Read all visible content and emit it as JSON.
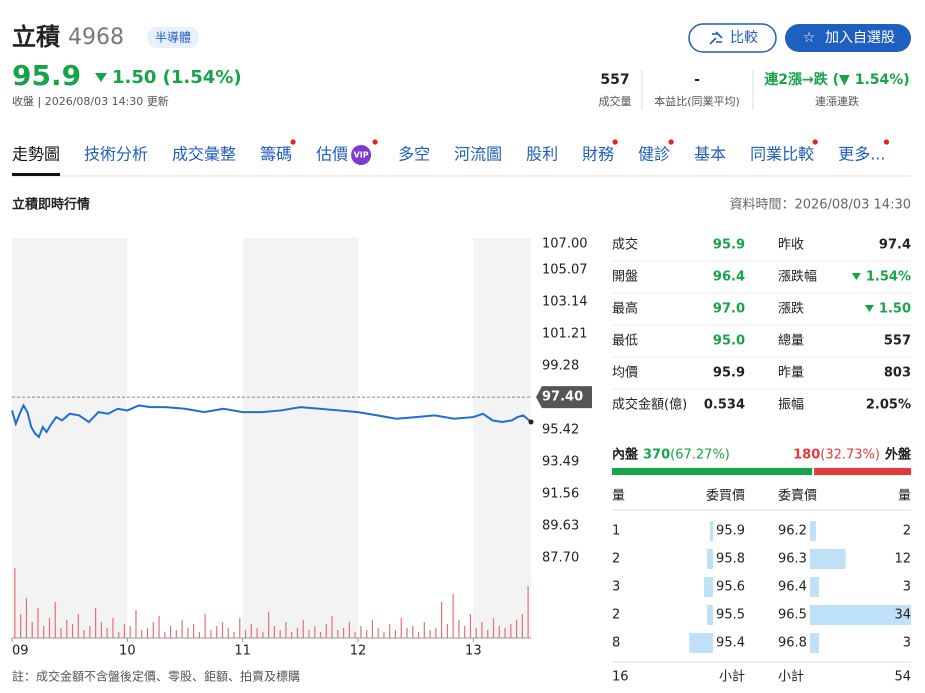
{
  "header": {
    "name": "立積",
    "code": "4968",
    "tag": "半導體",
    "price": "95.9",
    "change": "1.50 (1.54%)",
    "direction": "down",
    "updated": "收盤 | 2026/08/03 14:30 更新",
    "buttons": [
      "比較",
      "加入自選股"
    ]
  },
  "stats": [
    {
      "value": "557",
      "label": "成交量"
    },
    {
      "value": "-",
      "label": "本益比(同業平均)"
    },
    {
      "value": "連2漲→跌 (▼ 1.54%)",
      "label": "連漲連跌",
      "color": "#16a34a"
    }
  ],
  "tabs": [
    {
      "label": "走勢圖",
      "active": true
    },
    {
      "label": "技術分析"
    },
    {
      "label": "成交彙整"
    },
    {
      "label": "籌碼",
      "dot": true
    },
    {
      "label": "估價",
      "badge": "VIP",
      "dot": true
    },
    {
      "label": "多空"
    },
    {
      "label": "河流圖"
    },
    {
      "label": "股利"
    },
    {
      "label": "財務",
      "dot": true
    },
    {
      "label": "健診",
      "dot": true
    },
    {
      "label": "基本"
    },
    {
      "label": "同業比較",
      "dot": true
    },
    {
      "label": "更多...",
      "dot": true
    }
  ],
  "section": {
    "title": "立積即時行情",
    "time": "資料時間：2026/08/03 14:30"
  },
  "chart_data": {
    "type": "line",
    "grid": false,
    "x": [
      0,
      2,
      4,
      6,
      8,
      10,
      12,
      14,
      16,
      18,
      20,
      23,
      26,
      30,
      35,
      40,
      45,
      50,
      55,
      60,
      66,
      72,
      80,
      90,
      100,
      110,
      120,
      130,
      140,
      150,
      160,
      170,
      180,
      190,
      200,
      210,
      220,
      230,
      240,
      245,
      250,
      255,
      260,
      263,
      266,
      270
    ],
    "series": [
      {
        "color": "#1f6fd1",
        "values": [
          96.6,
          95.8,
          96.4,
          96.9,
          96.5,
          95.6,
          95.2,
          95.0,
          95.6,
          95.3,
          95.7,
          96.2,
          96.0,
          96.4,
          96.3,
          95.9,
          96.5,
          96.4,
          96.7,
          96.6,
          96.9,
          96.8,
          96.8,
          96.7,
          96.5,
          96.7,
          96.5,
          96.5,
          96.6,
          96.8,
          96.7,
          96.6,
          96.5,
          96.3,
          96.1,
          96.2,
          96.3,
          96.1,
          96.2,
          96.4,
          96.0,
          95.9,
          96.0,
          96.2,
          96.3,
          95.9
        ]
      }
    ],
    "xlim": [
      0,
      270
    ],
    "xticks": [
      {
        "value": 0,
        "label": "09"
      },
      {
        "value": 60,
        "label": "10"
      },
      {
        "value": 120,
        "label": "11"
      },
      {
        "value": 180,
        "label": "12"
      },
      {
        "value": 240,
        "label": "13"
      }
    ],
    "ylim": [
      87.7,
      107
    ],
    "yticks": [
      {
        "value": 107,
        "label": "107.00"
      },
      {
        "value": 105.07,
        "label": "105.07"
      },
      {
        "value": 103.14,
        "label": "103.14"
      },
      {
        "value": 101.21,
        "label": "101.21"
      },
      {
        "value": 99.28,
        "label": "99.28"
      },
      {
        "value": 95.42,
        "label": "95.42"
      },
      {
        "value": 93.49,
        "label": "93.49"
      },
      {
        "value": 91.56,
        "label": "91.56"
      },
      {
        "value": 89.63,
        "label": "89.63"
      },
      {
        "value": 87.7,
        "label": "87.70"
      }
    ],
    "reference": {
      "value": 97.4,
      "label": "97.40"
    },
    "volume": {
      "color": "#e57373",
      "vlim": [
        0,
        40
      ],
      "values": [
        35,
        12,
        20,
        8,
        15,
        6,
        10,
        18,
        5,
        9,
        7,
        12,
        4,
        6,
        15,
        8,
        5,
        10,
        3,
        7,
        6,
        14,
        4,
        5,
        8,
        11,
        3,
        6,
        4,
        9,
        5,
        7,
        3,
        12,
        4,
        6,
        8,
        5,
        3,
        10,
        4,
        7,
        5,
        3,
        13,
        6,
        4,
        8,
        3,
        5,
        9,
        4,
        6,
        3,
        7,
        11,
        4,
        5,
        8,
        3,
        6,
        4,
        9,
        5,
        3,
        7,
        4,
        10,
        5,
        6,
        3,
        8,
        4,
        5,
        18,
        7,
        22,
        9,
        6,
        12,
        5,
        8,
        4,
        10,
        6,
        5,
        7,
        9,
        12,
        26
      ]
    }
  },
  "quote": {
    "rows": [
      [
        {
          "label": "成交",
          "value": "95.9",
          "color": "#16a34a"
        },
        {
          "label": "昨收",
          "value": "97.4"
        }
      ],
      [
        {
          "label": "開盤",
          "value": "96.4",
          "color": "#16a34a"
        },
        {
          "label": "漲跌幅",
          "value": "1.54%",
          "color": "#16a34a",
          "arrow": "down"
        }
      ],
      [
        {
          "label": "最高",
          "value": "97.0",
          "color": "#16a34a"
        },
        {
          "label": "漲跌",
          "value": "1.50",
          "color": "#16a34a",
          "arrow": "down"
        }
      ],
      [
        {
          "label": "最低",
          "value": "95.0",
          "color": "#16a34a"
        },
        {
          "label": "總量",
          "value": "557"
        }
      ],
      [
        {
          "label": "均價",
          "value": "95.9"
        },
        {
          "label": "昨量",
          "value": "803"
        }
      ],
      [
        {
          "label": "成交金額(億)",
          "value": "0.534"
        },
        {
          "label": "振幅",
          "value": "2.05%"
        }
      ]
    ]
  },
  "flow": {
    "inner_label": "內盤",
    "inner": 370,
    "inner_pct": "(67.27%)",
    "outer_label": "外盤",
    "outer": 180,
    "outer_pct": "(32.73%)"
  },
  "orderbook": {
    "columns": [
      "量",
      "委買價",
      "委賣價",
      "量"
    ],
    "rows": [
      {
        "buy_vol": 1,
        "buy_price": "95.9",
        "sell_price": "96.2",
        "sell_vol": 2
      },
      {
        "buy_vol": 2,
        "buy_price": "95.8",
        "sell_price": "96.3",
        "sell_vol": 12
      },
      {
        "buy_vol": 3,
        "buy_price": "95.6",
        "sell_price": "96.4",
        "sell_vol": 3
      },
      {
        "buy_vol": 2,
        "buy_price": "95.5",
        "sell_price": "96.5",
        "sell_vol": 34
      },
      {
        "buy_vol": 8,
        "buy_price": "95.4",
        "sell_price": "96.8",
        "sell_vol": 3
      }
    ],
    "footer": {
      "buy_total": 16,
      "buy_label": "小計",
      "sell_label": "小計",
      "sell_total": 54
    }
  },
  "note": "註：成交金額不含盤後定價、零股、鉅額、拍賣及標購"
}
